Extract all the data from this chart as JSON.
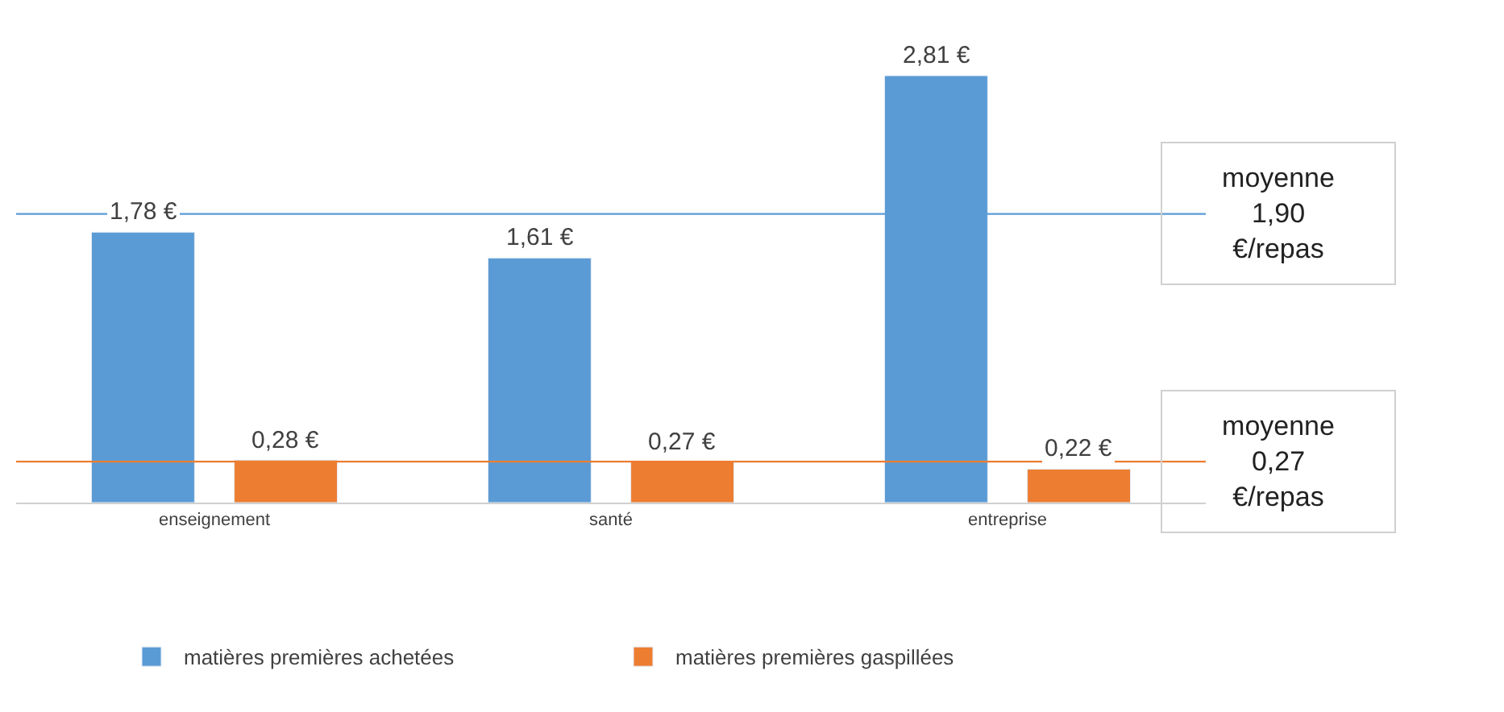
{
  "chart_data": {
    "type": "bar",
    "categories": [
      "enseignement",
      "santé",
      "entreprise"
    ],
    "series": [
      {
        "name": "matières premières achetées",
        "color": "#5b9bd5",
        "values": [
          1.78,
          1.61,
          2.81
        ],
        "value_labels": [
          "1,78 €",
          "1,61 €",
          "2,81 €"
        ]
      },
      {
        "name": "matières premières gaspillées",
        "color": "#ed7d31",
        "values": [
          0.28,
          0.27,
          0.22
        ],
        "value_labels": [
          "0,28 €",
          "0,27 €",
          "0,22 €"
        ]
      }
    ],
    "tick_labels": "x",
    "legend": "bottom",
    "ref_lines": [
      {
        "axis": "y",
        "value": 1.9,
        "label": "moyenne\n1,90\n€/repas",
        "color": "#5b9bd5"
      },
      {
        "axis": "y",
        "value": 0.27,
        "label": "moyenne\n0,27\n€/repas",
        "color": "#ed7d31"
      }
    ]
  }
}
